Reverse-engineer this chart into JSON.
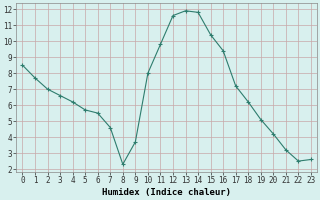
{
  "x": [
    0,
    1,
    2,
    3,
    4,
    5,
    6,
    7,
    8,
    9,
    10,
    11,
    12,
    13,
    14,
    15,
    16,
    17,
    18,
    19,
    20,
    21,
    22,
    23
  ],
  "y": [
    8.5,
    7.7,
    7.0,
    6.6,
    6.2,
    5.7,
    5.5,
    4.6,
    2.3,
    3.7,
    8.0,
    9.8,
    11.6,
    11.9,
    11.8,
    10.4,
    9.4,
    7.2,
    6.2,
    5.1,
    4.2,
    3.2,
    2.5,
    2.6
  ],
  "xlabel": "Humidex (Indice chaleur)",
  "line_color": "#2e7d6e",
  "marker": "+",
  "marker_size": 3.5,
  "marker_lw": 0.8,
  "line_width": 0.8,
  "bg_color": "#d8f0ee",
  "grid_major_color": "#c8a8a8",
  "grid_minor_color": "#c8a8a8",
  "xlim": [
    -0.5,
    23.5
  ],
  "ylim": [
    1.8,
    12.4
  ],
  "yticks": [
    2,
    3,
    4,
    5,
    6,
    7,
    8,
    9,
    10,
    11,
    12
  ],
  "xticks": [
    0,
    1,
    2,
    3,
    4,
    5,
    6,
    7,
    8,
    9,
    10,
    11,
    12,
    13,
    14,
    15,
    16,
    17,
    18,
    19,
    20,
    21,
    22,
    23
  ],
  "tick_fontsize": 5.5,
  "xlabel_fontsize": 6.5,
  "spine_color": "#888888"
}
